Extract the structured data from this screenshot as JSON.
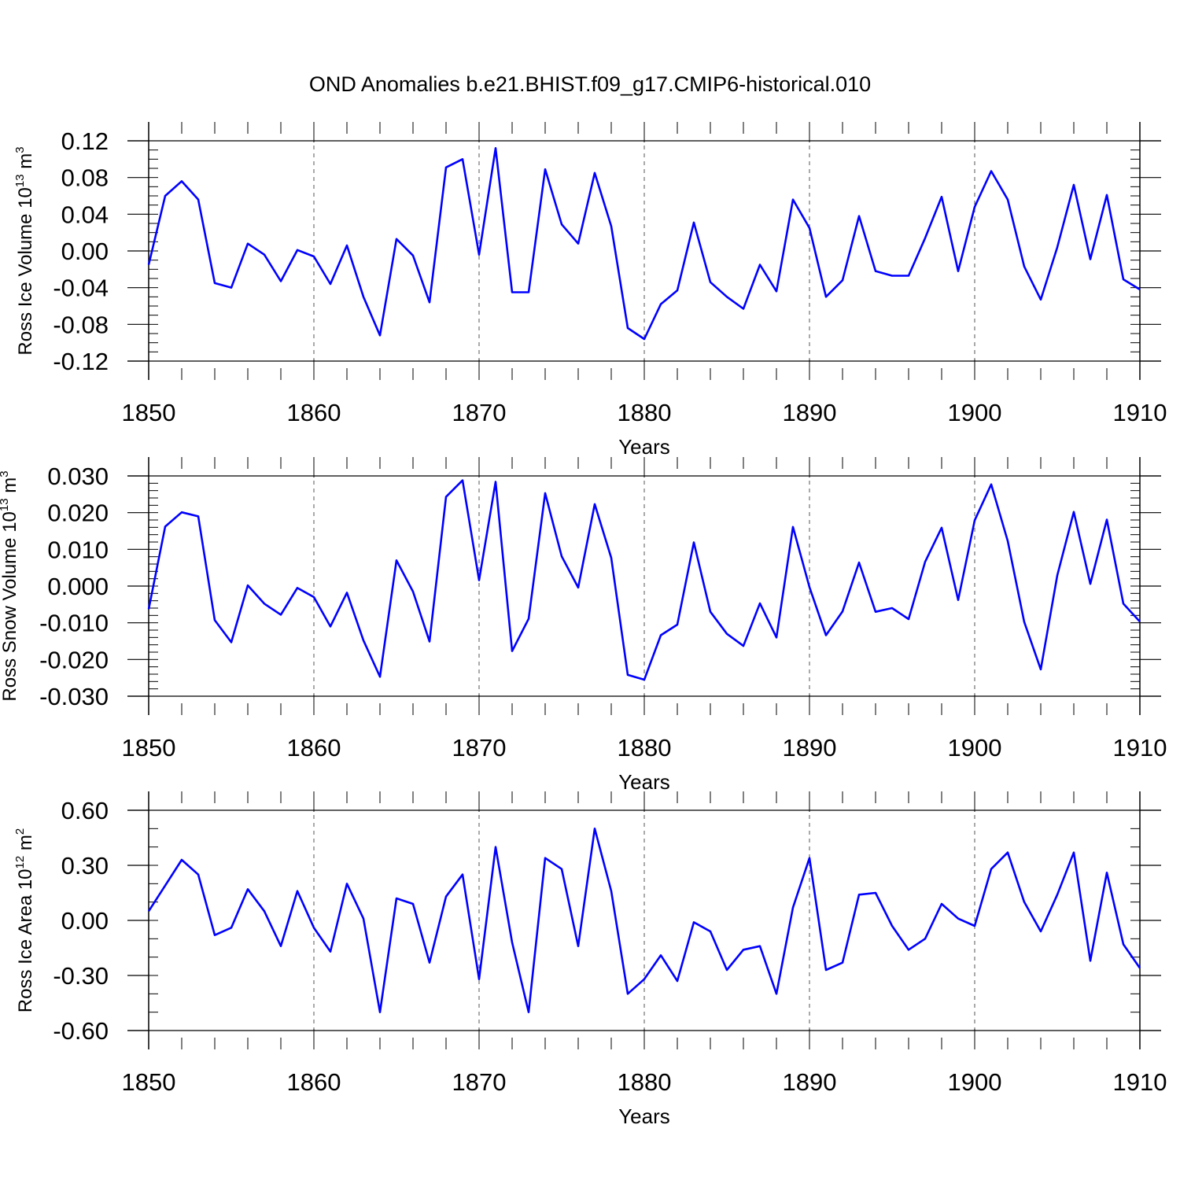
{
  "title": "OND Anomalies b.e21.BHIST.f09_g17.CMIP6-historical.010",
  "colors": {
    "line": "#0000ff",
    "axis": "#000000",
    "grid": "#555555"
  },
  "chart_data": [
    {
      "type": "line",
      "xlabel": "Years",
      "ylabel_parts": {
        "prefix": "Ross Ice Volume 10",
        "exp": "13",
        "unit": " m",
        "unit_exp": "3"
      },
      "xlim": [
        1850,
        1910
      ],
      "x_ticks": [
        "1850",
        "1860",
        "1870",
        "1880",
        "1890",
        "1900",
        "1910"
      ],
      "ylim": [
        -0.13,
        0.13
      ],
      "y_ticks": [
        -0.12,
        -0.08,
        -0.04,
        0.0,
        0.04,
        0.08,
        0.12
      ],
      "y_tick_labels": [
        "-0.12",
        "-0.08",
        "-0.04",
        "0.00",
        "0.04",
        "0.08",
        "0.12"
      ],
      "minor_step": 0.01,
      "x_start": 1850,
      "values": [
        -0.015,
        0.06,
        0.076,
        0.056,
        -0.035,
        -0.04,
        0.008,
        -0.004,
        -0.033,
        0.001,
        -0.006,
        -0.036,
        0.006,
        -0.05,
        -0.092,
        0.013,
        -0.005,
        -0.056,
        0.091,
        0.1,
        -0.004,
        0.112,
        -0.045,
        -0.045,
        0.089,
        0.029,
        0.008,
        0.085,
        0.027,
        -0.084,
        -0.096,
        -0.058,
        -0.043,
        0.031,
        -0.034,
        -0.05,
        -0.063,
        -0.015,
        -0.044,
        0.056,
        0.025,
        -0.05,
        -0.032,
        0.038,
        -0.022,
        -0.027,
        -0.027,
        0.014,
        0.059,
        -0.022,
        0.048,
        0.087,
        0.056,
        -0.017,
        -0.053,
        0.004,
        0.072,
        -0.009,
        0.061,
        -0.031,
        -0.042
      ]
    },
    {
      "type": "line",
      "xlabel": "Years",
      "ylabel_parts": {
        "prefix": "Ross Snow Volume 10",
        "exp": "13",
        "unit": " m",
        "unit_exp": "3"
      },
      "xlim": [
        1850,
        1910
      ],
      "x_ticks": [
        "1850",
        "1860",
        "1870",
        "1880",
        "1890",
        "1900",
        "1910"
      ],
      "ylim": [
        -0.03,
        0.03
      ],
      "y_ticks": [
        -0.03,
        -0.02,
        -0.01,
        0.0,
        0.01,
        0.02,
        0.03
      ],
      "y_tick_labels": [
        "-0.030",
        "-0.020",
        "-0.010",
        "0.000",
        "0.010",
        "0.020",
        "0.030"
      ],
      "minor_step": 0.002,
      "x_start": 1850,
      "values": [
        -0.0063,
        0.0162,
        0.0201,
        0.019,
        -0.0093,
        -0.0153,
        0.0002,
        -0.0048,
        -0.0078,
        -0.0005,
        -0.003,
        -0.011,
        -0.0018,
        -0.0148,
        -0.0247,
        0.007,
        -0.0015,
        -0.0151,
        0.0243,
        0.0288,
        0.0016,
        0.0284,
        -0.0177,
        -0.0089,
        0.0253,
        0.0081,
        -0.0004,
        0.0223,
        0.0077,
        -0.0242,
        -0.0255,
        -0.0134,
        -0.0105,
        0.0119,
        -0.007,
        -0.013,
        -0.0163,
        -0.0047,
        -0.014,
        0.0161,
        -0.0003,
        -0.0134,
        -0.0069,
        0.0064,
        -0.007,
        -0.006,
        -0.009,
        0.0066,
        0.0159,
        -0.0038,
        0.0179,
        0.0277,
        0.0123,
        -0.0098,
        -0.0227,
        0.0029,
        0.0202,
        0.0006,
        0.0181,
        -0.0048,
        -0.0097
      ]
    },
    {
      "type": "line",
      "xlabel": "Years",
      "ylabel_parts": {
        "prefix": "Ross Ice Area 10",
        "exp": "12",
        "unit": " m",
        "unit_exp": "2"
      },
      "xlim": [
        1850,
        1910
      ],
      "x_ticks": [
        "1850",
        "1860",
        "1870",
        "1880",
        "1890",
        "1900",
        "1910"
      ],
      "ylim": [
        -0.6,
        0.6
      ],
      "y_ticks": [
        -0.6,
        -0.3,
        0.0,
        0.3,
        0.6
      ],
      "y_tick_labels": [
        "-0.60",
        "-0.30",
        "0.00",
        "0.30",
        "0.60"
      ],
      "minor_step": 0.1,
      "x_start": 1850,
      "values": [
        0.05,
        0.19,
        0.33,
        0.25,
        -0.08,
        -0.04,
        0.17,
        0.05,
        -0.14,
        0.16,
        -0.04,
        -0.17,
        0.2,
        0.01,
        -0.5,
        0.12,
        0.09,
        -0.23,
        0.13,
        0.25,
        -0.32,
        0.4,
        -0.12,
        -0.5,
        0.34,
        0.28,
        -0.14,
        0.5,
        0.16,
        -0.4,
        -0.32,
        -0.19,
        -0.33,
        -0.01,
        -0.06,
        -0.27,
        -0.16,
        -0.14,
        -0.4,
        0.07,
        0.34,
        -0.27,
        -0.23,
        0.14,
        0.15,
        -0.03,
        -0.16,
        -0.1,
        0.09,
        0.01,
        -0.03,
        0.28,
        0.37,
        0.1,
        -0.06,
        0.14,
        0.37,
        -0.22,
        0.26,
        -0.13,
        -0.26
      ]
    }
  ]
}
